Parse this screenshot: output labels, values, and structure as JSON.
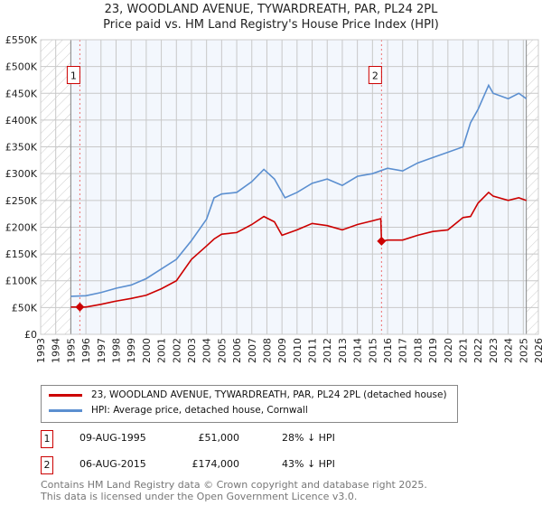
{
  "chart_data": {
    "type": "line",
    "title": "23, WOODLAND AVENUE, TYWARDREATH, PAR, PL24 2PL",
    "subtitle": "Price paid vs. HM Land Registry's House Price Index (HPI)",
    "xlim": [
      1993,
      2026
    ],
    "ylim": [
      0,
      550000
    ],
    "x_ticks": [
      "1993",
      "1994",
      "1995",
      "1996",
      "1997",
      "1998",
      "1999",
      "2000",
      "2001",
      "2002",
      "2003",
      "2004",
      "2005",
      "2006",
      "2007",
      "2008",
      "2009",
      "2010",
      "2011",
      "2012",
      "2013",
      "2014",
      "2015",
      "2016",
      "2017",
      "2018",
      "2019",
      "2020",
      "2021",
      "2022",
      "2023",
      "2024",
      "2025",
      "2026"
    ],
    "y_ticks": [
      "£0",
      "£50K",
      "£100K",
      "£150K",
      "£200K",
      "£250K",
      "£300K",
      "£350K",
      "£400K",
      "£450K",
      "£500K",
      "£550K"
    ],
    "grid": true,
    "series": [
      {
        "name": "23, WOODLAND AVENUE, TYWARDREATH, PAR, PL24 2PL (detached house)",
        "color": "#cc0000",
        "x": [
          1995,
          1995.6,
          1996,
          1997,
          1998,
          1999,
          2000,
          2001,
          2002,
          2003,
          2004,
          2004.5,
          2005,
          2006,
          2007,
          2007.8,
          2008.5,
          2009,
          2010,
          2011,
          2012,
          2013,
          2014,
          2015,
          2015.55,
          2015.6,
          2016,
          2017,
          2018,
          2019,
          2020,
          2021,
          2021.5,
          2022,
          2022.7,
          2023,
          2024,
          2024.7,
          2025.2
        ],
        "y": [
          51000,
          51000,
          51000,
          56000,
          62000,
          67000,
          73000,
          85000,
          100000,
          140000,
          165000,
          178000,
          187000,
          190000,
          205000,
          220000,
          210000,
          185000,
          195000,
          207000,
          203000,
          195000,
          205000,
          212000,
          216000,
          174000,
          176000,
          176000,
          185000,
          192000,
          195000,
          218000,
          220000,
          245000,
          265000,
          258000,
          250000,
          255000,
          250000
        ]
      },
      {
        "name": "HPI: Average price, detached house, Cornwall",
        "color": "#5b8fd0",
        "x": [
          1995,
          1996,
          1997,
          1998,
          1999,
          2000,
          2001,
          2002,
          2003,
          2004,
          2004.5,
          2005,
          2006,
          2007,
          2007.8,
          2008.5,
          2009.2,
          2010,
          2011,
          2012,
          2013,
          2014,
          2015,
          2016,
          2017,
          2018,
          2019,
          2020,
          2021,
          2021.5,
          2022,
          2022.7,
          2023,
          2024,
          2024.7,
          2025.2
        ],
        "y": [
          71000,
          72000,
          78000,
          86000,
          92000,
          104000,
          122000,
          140000,
          175000,
          215000,
          255000,
          262000,
          265000,
          285000,
          308000,
          290000,
          255000,
          265000,
          282000,
          290000,
          278000,
          295000,
          300000,
          310000,
          305000,
          320000,
          330000,
          340000,
          350000,
          395000,
          420000,
          465000,
          450000,
          440000,
          450000,
          440000
        ]
      }
    ],
    "markers": [
      {
        "label": "1",
        "x": 1995.6,
        "y": 51000
      },
      {
        "label": "2",
        "x": 2015.6,
        "y": 174000
      }
    ],
    "legend": {
      "placement": "below"
    }
  },
  "legend_items": [
    "23, WOODLAND AVENUE, TYWARDREATH, PAR, PL24 2PL (detached house)",
    "HPI: Average price, detached house, Cornwall"
  ],
  "transactions": [
    {
      "num": "1",
      "date": "09-AUG-1995",
      "price": "£51,000",
      "hpi": "28% ↓ HPI"
    },
    {
      "num": "2",
      "date": "06-AUG-2015",
      "price": "£174,000",
      "hpi": "43% ↓ HPI"
    }
  ],
  "footer": [
    "Contains HM Land Registry data © Crown copyright and database right 2025.",
    "This data is licensed under the Open Government Licence v3.0."
  ]
}
